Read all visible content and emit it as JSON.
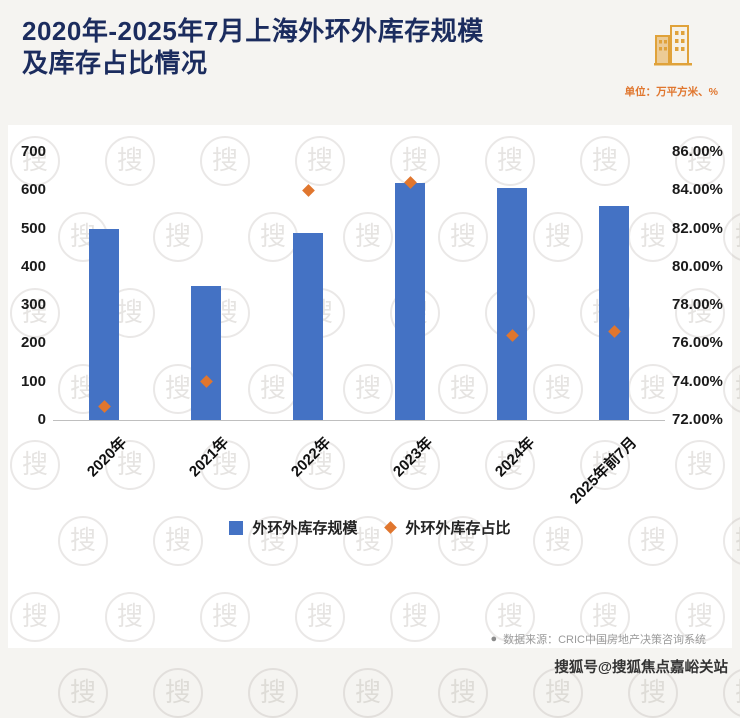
{
  "header": {
    "title_line1": "2020年-2025年7月上海外环外库存规模",
    "title_line2": "及库存占比情况",
    "unit_label": "单位：万平方米、%"
  },
  "chart_data": {
    "type": "bar",
    "title": "2020年-2025年7月上海外环外库存规模及库存占比情况",
    "categories": [
      "2020年",
      "2021年",
      "2022年",
      "2023年",
      "2024年",
      "2025年前7月"
    ],
    "series": [
      {
        "name": "外环外库存规模",
        "type": "bar",
        "axis": "left",
        "unit": "万平方米",
        "values": [
          500,
          350,
          488,
          620,
          605,
          560
        ]
      },
      {
        "name": "外环外库存占比",
        "type": "scatter",
        "axis": "right",
        "unit": "%",
        "values": [
          72.7,
          74.0,
          84.0,
          84.4,
          76.4,
          76.6
        ]
      }
    ],
    "left_axis": {
      "min": 0,
      "max": 700,
      "ticks": [
        0,
        100,
        200,
        300,
        400,
        500,
        600,
        700
      ]
    },
    "right_axis": {
      "min": 72,
      "max": 86,
      "ticks": [
        72,
        74,
        76,
        78,
        80,
        82,
        84,
        86
      ],
      "tick_labels": [
        "72.00%",
        "74.00%",
        "76.00%",
        "78.00%",
        "80.00%",
        "82.00%",
        "84.00%",
        "86.00%"
      ]
    },
    "grid": false,
    "legend_position": "bottom"
  },
  "legend": {
    "items": [
      {
        "label": "外环外库存规模",
        "marker": "square"
      },
      {
        "label": "外环外库存占比",
        "marker": "diamond"
      }
    ]
  },
  "footer": {
    "source_bullet": "●",
    "source_text": "数据来源：CRIC中国房地产决策咨询系统",
    "credit_text": "搜狐号@搜狐焦点嘉峪关站"
  },
  "watermark": {
    "glyph": "搜"
  },
  "colors": {
    "bar": "#4472C4",
    "point": "#E0762E",
    "title": "#1B2C5E",
    "unit": "#E0762E"
  }
}
